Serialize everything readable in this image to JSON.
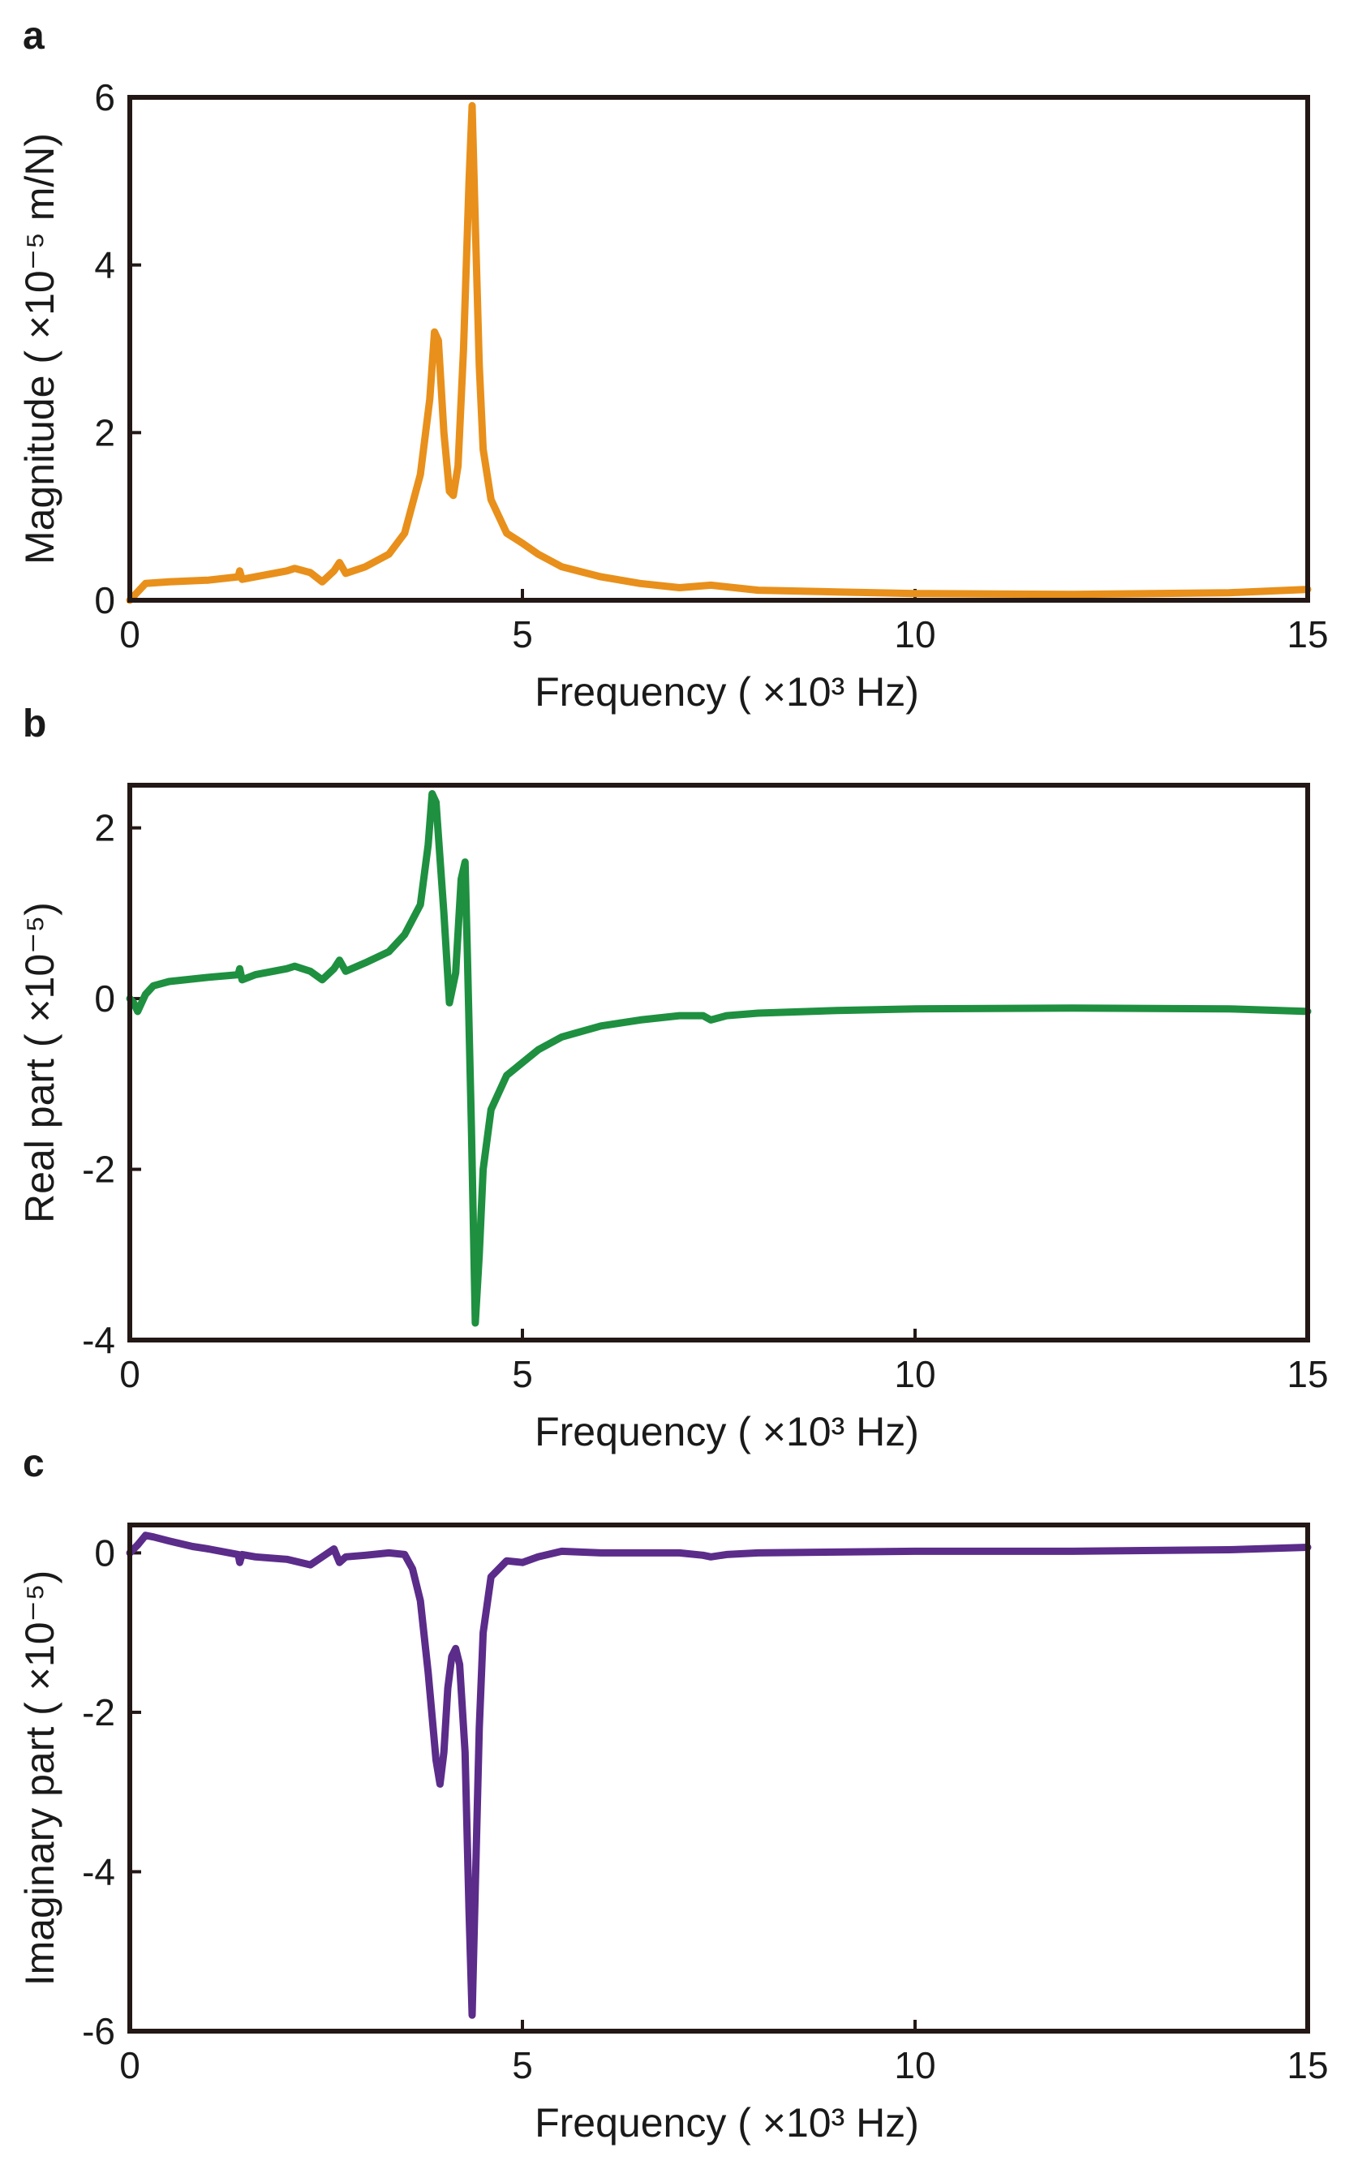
{
  "chart_data": [
    {
      "panel": "a",
      "type": "line",
      "xlabel": "Frequency ( ×10³ Hz)",
      "ylabel": "Magnitude ( ×10⁻⁵ m/N)",
      "xlim": [
        0,
        15
      ],
      "ylim": [
        0,
        6
      ],
      "xticks": [
        0,
        5,
        10,
        15
      ],
      "yticks": [
        0,
        2,
        4,
        6
      ],
      "xtick_labels": [
        "0",
        "5",
        "10",
        "15"
      ],
      "ytick_labels": [
        "0",
        "2",
        "4",
        "6"
      ],
      "color": "#E8901B",
      "series": [
        {
          "name": "Magnitude",
          "x": [
            0,
            0.1,
            0.2,
            0.5,
            1.0,
            1.38,
            1.4,
            1.43,
            1.6,
            2.0,
            2.1,
            2.3,
            2.45,
            2.6,
            2.67,
            2.75,
            3.0,
            3.3,
            3.5,
            3.7,
            3.82,
            3.88,
            3.93,
            4.0,
            4.07,
            4.12,
            4.18,
            4.25,
            4.32,
            4.36,
            4.4,
            4.45,
            4.5,
            4.6,
            4.8,
            5.0,
            5.2,
            5.5,
            6.0,
            6.5,
            7.0,
            7.4,
            8.0,
            9.0,
            10.0,
            12.0,
            14.0,
            15.0
          ],
          "y": [
            0.0,
            0.1,
            0.2,
            0.22,
            0.24,
            0.28,
            0.35,
            0.25,
            0.28,
            0.35,
            0.38,
            0.33,
            0.22,
            0.35,
            0.45,
            0.32,
            0.4,
            0.55,
            0.8,
            1.5,
            2.4,
            3.2,
            3.1,
            2.0,
            1.3,
            1.25,
            1.6,
            3.0,
            5.0,
            5.9,
            4.5,
            2.8,
            1.8,
            1.2,
            0.8,
            0.68,
            0.55,
            0.4,
            0.28,
            0.2,
            0.15,
            0.18,
            0.12,
            0.1,
            0.08,
            0.07,
            0.09,
            0.13
          ]
        }
      ]
    },
    {
      "panel": "b",
      "type": "line",
      "xlabel": "Frequency ( ×10³ Hz)",
      "ylabel": "Real part ( ×10⁻⁵)",
      "xlim": [
        0,
        15
      ],
      "ylim": [
        -4,
        2.5
      ],
      "xticks": [
        0,
        5,
        10,
        15
      ],
      "yticks": [
        -4,
        -2,
        0,
        2
      ],
      "xtick_labels": [
        "0",
        "5",
        "10",
        "15"
      ],
      "ytick_labels": [
        "-4",
        "-2",
        "0",
        "2"
      ],
      "color": "#1E9040",
      "series": [
        {
          "name": "Real part",
          "x": [
            0,
            0.05,
            0.1,
            0.2,
            0.3,
            0.5,
            1.0,
            1.38,
            1.4,
            1.43,
            1.6,
            2.0,
            2.1,
            2.3,
            2.45,
            2.6,
            2.67,
            2.75,
            3.0,
            3.3,
            3.5,
            3.7,
            3.8,
            3.85,
            3.9,
            4.0,
            4.07,
            4.15,
            4.22,
            4.27,
            4.3,
            4.35,
            4.4,
            4.45,
            4.5,
            4.6,
            4.8,
            5.0,
            5.2,
            5.5,
            6.0,
            6.5,
            7.0,
            7.3,
            7.4,
            7.6,
            8.0,
            9.0,
            10.0,
            12.0,
            14.0,
            15.0
          ],
          "y": [
            0.0,
            -0.05,
            -0.15,
            0.05,
            0.15,
            0.2,
            0.25,
            0.28,
            0.35,
            0.22,
            0.28,
            0.35,
            0.38,
            0.32,
            0.22,
            0.35,
            0.45,
            0.32,
            0.42,
            0.55,
            0.75,
            1.1,
            1.8,
            2.4,
            2.3,
            1.0,
            -0.05,
            0.3,
            1.4,
            1.6,
            0.5,
            -1.5,
            -3.8,
            -3.0,
            -2.0,
            -1.3,
            -0.9,
            -0.75,
            -0.6,
            -0.45,
            -0.32,
            -0.25,
            -0.2,
            -0.2,
            -0.25,
            -0.2,
            -0.17,
            -0.14,
            -0.12,
            -0.11,
            -0.12,
            -0.15
          ]
        }
      ]
    },
    {
      "panel": "c",
      "type": "line",
      "xlabel": "Frequency ( ×10³ Hz)",
      "ylabel": "Imaginary part ( ×10⁻⁵)",
      "xlim": [
        0,
        15
      ],
      "ylim": [
        -6,
        0.35
      ],
      "xticks": [
        0,
        5,
        10,
        15
      ],
      "yticks": [
        -6,
        -4,
        -2,
        0
      ],
      "xtick_labels": [
        "0",
        "5",
        "10",
        "15"
      ],
      "ytick_labels": [
        "-6",
        "-4",
        "-2",
        "0"
      ],
      "color": "#5B2C8A",
      "series": [
        {
          "name": "Imaginary part",
          "x": [
            0,
            0.1,
            0.2,
            0.3,
            0.5,
            0.8,
            1.0,
            1.38,
            1.4,
            1.43,
            1.6,
            2.0,
            2.3,
            2.45,
            2.6,
            2.67,
            2.75,
            3.0,
            3.3,
            3.5,
            3.6,
            3.7,
            3.8,
            3.9,
            3.95,
            4.0,
            4.05,
            4.1,
            4.15,
            4.2,
            4.27,
            4.32,
            4.36,
            4.4,
            4.45,
            4.5,
            4.6,
            4.8,
            5.0,
            5.2,
            5.5,
            6.0,
            7.0,
            7.3,
            7.4,
            7.6,
            8.0,
            10.0,
            12.0,
            14.0,
            15.0
          ],
          "y": [
            0.0,
            0.1,
            0.22,
            0.2,
            0.15,
            0.08,
            0.05,
            -0.02,
            -0.12,
            -0.02,
            -0.05,
            -0.08,
            -0.15,
            -0.05,
            0.05,
            -0.12,
            -0.05,
            -0.03,
            0.0,
            -0.02,
            -0.2,
            -0.6,
            -1.5,
            -2.6,
            -2.9,
            -2.5,
            -1.7,
            -1.3,
            -1.2,
            -1.4,
            -2.5,
            -4.5,
            -5.8,
            -4.2,
            -2.2,
            -1.0,
            -0.3,
            -0.1,
            -0.12,
            -0.05,
            0.02,
            0.0,
            0.0,
            -0.03,
            -0.05,
            -0.02,
            0.0,
            0.02,
            0.02,
            0.04,
            0.07
          ]
        }
      ]
    }
  ]
}
